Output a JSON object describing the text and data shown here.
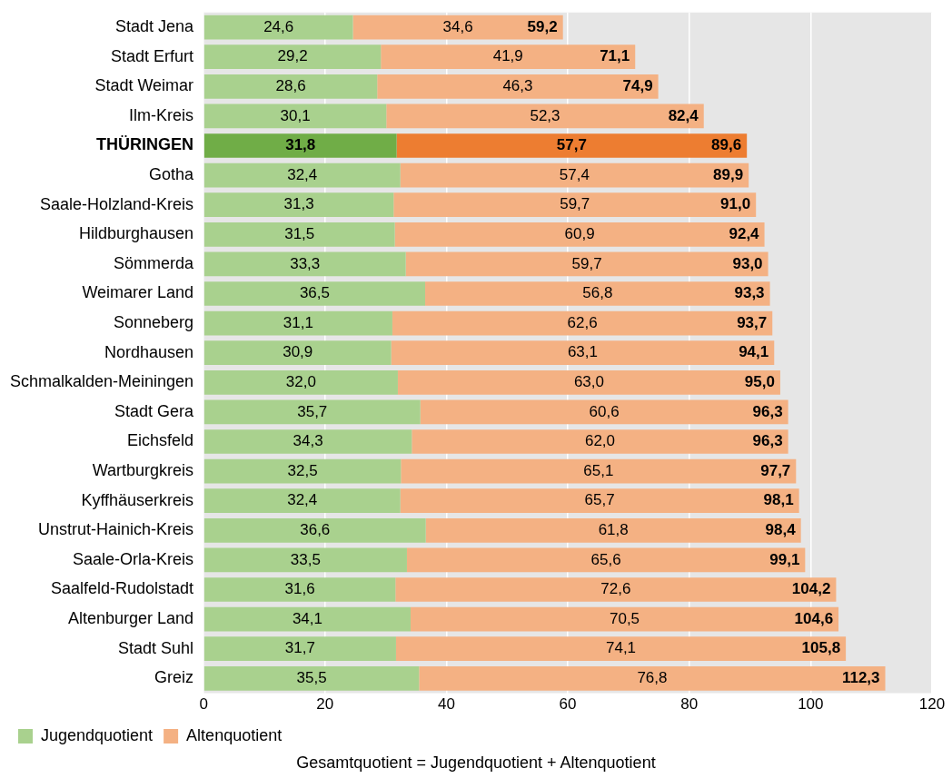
{
  "chart_data": {
    "type": "bar",
    "orientation": "horizontal",
    "stacked": true,
    "categories": [
      "Stadt Jena",
      "Stadt Erfurt",
      "Stadt Weimar",
      "Ilm-Kreis",
      "THÜRINGEN",
      "Gotha",
      "Saale-Holzland-Kreis",
      "Hildburghausen",
      "Sömmerda",
      "Weimarer Land",
      "Sonneberg",
      "Nordhausen",
      "Schmalkalden-Meiningen",
      "Stadt Gera",
      "Eichsfeld",
      "Wartburgkreis",
      "Kyffhäuserkreis",
      "Unstrut-Hainich-Kreis",
      "Saale-Orla-Kreis",
      "Saalfeld-Rudolstadt",
      "Altenburger Land",
      "Stadt Suhl",
      "Greiz"
    ],
    "series": [
      {
        "name": "Jugendquotient",
        "color": "#a9d18e",
        "colors": [
          "#a9d18e",
          "#a9d18e",
          "#a9d18e",
          "#a9d18e",
          "#70ad47",
          "#a9d18e",
          "#a9d18e",
          "#a9d18e",
          "#a9d18e",
          "#a9d18e",
          "#a9d18e",
          "#a9d18e",
          "#a9d18e",
          "#a9d18e",
          "#a9d18e",
          "#a9d18e",
          "#a9d18e",
          "#a9d18e",
          "#a9d18e",
          "#a9d18e",
          "#a9d18e",
          "#a9d18e",
          "#a9d18e"
        ],
        "values": [
          24.6,
          29.2,
          28.6,
          30.1,
          31.8,
          32.4,
          31.3,
          31.5,
          33.3,
          36.5,
          31.1,
          30.9,
          32.0,
          35.7,
          34.3,
          32.5,
          32.4,
          36.6,
          33.5,
          31.6,
          34.1,
          31.7,
          35.5
        ],
        "value_labels": [
          "24,6",
          "29,2",
          "28,6",
          "30,1",
          "31,8",
          "32,4",
          "31,3",
          "31,5",
          "33,3",
          "36,5",
          "31,1",
          "30,9",
          "32,0",
          "35,7",
          "34,3",
          "32,5",
          "32,4",
          "36,6",
          "33,5",
          "31,6",
          "34,1",
          "31,7",
          "35,5"
        ]
      },
      {
        "name": "Altenquotient",
        "color": "#f4b183",
        "colors": [
          "#f4b183",
          "#f4b183",
          "#f4b183",
          "#f4b183",
          "#ed7d31",
          "#f4b183",
          "#f4b183",
          "#f4b183",
          "#f4b183",
          "#f4b183",
          "#f4b183",
          "#f4b183",
          "#f4b183",
          "#f4b183",
          "#f4b183",
          "#f4b183",
          "#f4b183",
          "#f4b183",
          "#f4b183",
          "#f4b183",
          "#f4b183",
          "#f4b183",
          "#f4b183"
        ],
        "values": [
          34.6,
          41.9,
          46.3,
          52.3,
          57.7,
          57.4,
          59.7,
          60.9,
          59.7,
          56.8,
          62.6,
          63.1,
          63.0,
          60.6,
          62.0,
          65.1,
          65.7,
          61.8,
          65.6,
          72.6,
          70.5,
          74.1,
          76.8
        ],
        "value_labels": [
          "34,6",
          "41,9",
          "46,3",
          "52,3",
          "57,7",
          "57,4",
          "59,7",
          "60,9",
          "59,7",
          "56,8",
          "62,6",
          "63,1",
          "63,0",
          "60,6",
          "62,0",
          "65,1",
          "65,7",
          "61,8",
          "65,6",
          "72,6",
          "70,5",
          "74,1",
          "76,8"
        ]
      }
    ],
    "totals": [
      "59,2",
      "71,1",
      "74,9",
      "82,4",
      "89,6",
      "89,9",
      "91,0",
      "92,4",
      "93,0",
      "93,3",
      "93,7",
      "94,1",
      "95,0",
      "96,3",
      "96,3",
      "97,7",
      "98,1",
      "98,4",
      "99,1",
      "104,2",
      "104,6",
      "105,8",
      "112,3"
    ],
    "xlim": [
      0,
      120
    ],
    "xticks": [
      0,
      20,
      40,
      60,
      80,
      100,
      120
    ],
    "grid": "x",
    "legend": "bottom",
    "annotations": [
      "Gesamtquotient  =  Jugendquotient  +  Altenquotient"
    ]
  }
}
